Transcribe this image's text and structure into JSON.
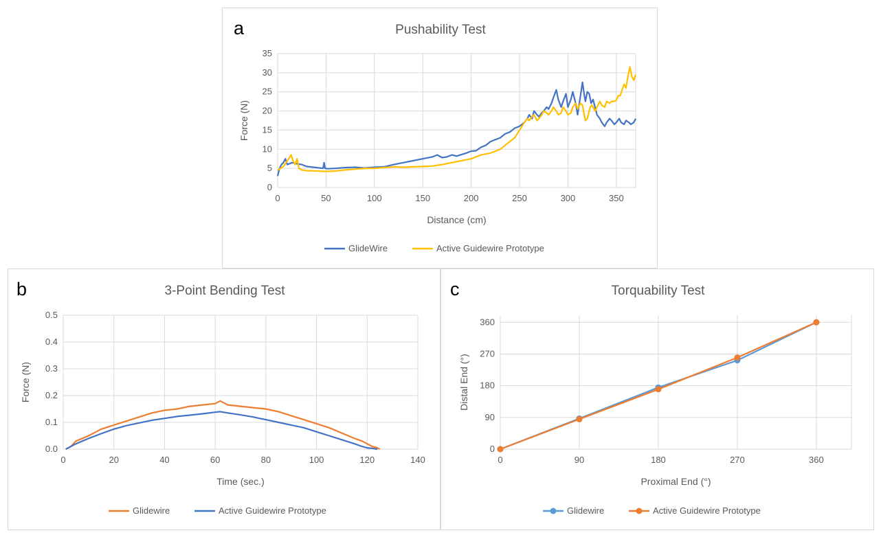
{
  "colors": {
    "blue": "#4472c4",
    "yellow": "#ffc000",
    "orange": "#ed7d31",
    "lightblue": "#5b9bd5",
    "grid": "#d9d9d9",
    "text": "#595959"
  },
  "chart_data": [
    {
      "id": "a",
      "letter": "a",
      "type": "line",
      "title": "Pushability Test",
      "xlabel": "Distance (cm)",
      "ylabel": "Force (N)",
      "xlim": [
        0,
        370
      ],
      "ylim": [
        0,
        35
      ],
      "xticks": [
        0,
        50,
        100,
        150,
        200,
        250,
        300,
        350
      ],
      "yticks": [
        0,
        5,
        10,
        15,
        20,
        25,
        30,
        35
      ],
      "vgrid": true,
      "legend_position": "bottom",
      "series": [
        {
          "name": "GlideWire",
          "color": "#4472c4",
          "x": [
            0,
            2,
            4,
            6,
            8,
            10,
            15,
            20,
            25,
            30,
            40,
            47,
            48,
            49,
            52,
            60,
            70,
            80,
            90,
            100,
            110,
            120,
            130,
            140,
            150,
            160,
            165,
            170,
            175,
            180,
            185,
            190,
            195,
            200,
            205,
            210,
            215,
            220,
            225,
            230,
            235,
            240,
            245,
            250,
            255,
            258,
            260,
            263,
            265,
            268,
            270,
            273,
            275,
            278,
            280,
            283,
            285,
            288,
            290,
            293,
            295,
            298,
            300,
            303,
            305,
            308,
            310,
            313,
            315,
            317,
            318,
            320,
            322,
            324,
            326,
            328,
            330,
            333,
            335,
            338,
            340,
            343,
            345,
            348,
            350,
            353,
            355,
            358,
            360,
            363,
            365,
            368,
            370
          ],
          "y": [
            3,
            5,
            6,
            6.5,
            7.5,
            6,
            6.5,
            6.2,
            6,
            5.5,
            5.2,
            5,
            6.5,
            5,
            4.9,
            5,
            5.2,
            5.3,
            5.1,
            5.3,
            5.4,
            6,
            6.5,
            7,
            7.5,
            8,
            8.5,
            7.8,
            8,
            8.5,
            8.2,
            8.6,
            9,
            9.5,
            9.6,
            10.5,
            11,
            12,
            12.5,
            13,
            14,
            14.5,
            15.5,
            16,
            17,
            18,
            19,
            18,
            20,
            19,
            18.5,
            19.5,
            20,
            21,
            20.5,
            22,
            23.5,
            25.5,
            23,
            21,
            22.5,
            24.5,
            21,
            23,
            25,
            22,
            19,
            24,
            27.5,
            24,
            22.5,
            25,
            24.5,
            22,
            23,
            21,
            19,
            18,
            17,
            16,
            17,
            18,
            17.5,
            16.5,
            17,
            18,
            17,
            16.5,
            17.5,
            17,
            16.5,
            17,
            18
          ]
        },
        {
          "name": "Active Guidewire Prototype",
          "color": "#ffc000",
          "x": [
            0,
            3,
            6,
            10,
            14,
            16,
            18,
            20,
            22,
            25,
            30,
            40,
            50,
            60,
            70,
            80,
            90,
            100,
            110,
            120,
            130,
            140,
            150,
            160,
            170,
            180,
            190,
            200,
            210,
            220,
            225,
            230,
            235,
            240,
            245,
            250,
            255,
            258,
            260,
            263,
            265,
            268,
            270,
            273,
            275,
            278,
            280,
            283,
            285,
            288,
            290,
            293,
            295,
            298,
            300,
            303,
            305,
            308,
            310,
            313,
            315,
            318,
            320,
            323,
            325,
            328,
            330,
            333,
            335,
            338,
            340,
            343,
            345,
            348,
            350,
            352,
            354,
            356,
            358,
            360,
            361,
            362,
            364,
            366,
            368,
            370
          ],
          "y": [
            4.5,
            5,
            5.5,
            7,
            8.5,
            7,
            6,
            7.5,
            5,
            4.6,
            4.4,
            4.3,
            4.2,
            4.3,
            4.6,
            4.8,
            5,
            5,
            5.2,
            5.4,
            5.3,
            5.4,
            5.5,
            5.6,
            6,
            6.5,
            7,
            7.5,
            8.5,
            9,
            9.5,
            10,
            11,
            12,
            13,
            15,
            17,
            18,
            17.5,
            18.5,
            19,
            17.5,
            18,
            19,
            20,
            19.5,
            19,
            20,
            21,
            20,
            19,
            19.5,
            21,
            20,
            19,
            19.5,
            21,
            22,
            20.5,
            22,
            21.5,
            17.5,
            18,
            21,
            21.5,
            20,
            21,
            22.5,
            21.5,
            21,
            22.5,
            22,
            22.5,
            22.5,
            22.8,
            24,
            24,
            25.5,
            27,
            26,
            27.5,
            29,
            31.5,
            29,
            28,
            29.5
          ]
        }
      ]
    },
    {
      "id": "b",
      "letter": "b",
      "type": "line",
      "title": "3-Point Bending Test",
      "xlabel": "Time (sec.)",
      "ylabel": "Force (N)",
      "xlim": [
        0,
        140
      ],
      "ylim": [
        0,
        0.5
      ],
      "xticks": [
        0,
        20,
        40,
        60,
        80,
        100,
        120,
        140
      ],
      "yticks": [
        0,
        0.1,
        0.2,
        0.3,
        0.4,
        0.5
      ],
      "vgrid": true,
      "legend_position": "bottom",
      "series": [
        {
          "name": "Glidewire",
          "color": "#ed7d31",
          "x": [
            1,
            3,
            5,
            10,
            15,
            20,
            25,
            30,
            35,
            40,
            45,
            50,
            55,
            60,
            62,
            63,
            65,
            70,
            75,
            80,
            85,
            90,
            95,
            100,
            105,
            110,
            115,
            118,
            120,
            122,
            124,
            125
          ],
          "y": [
            0,
            0.01,
            0.03,
            0.05,
            0.075,
            0.09,
            0.105,
            0.12,
            0.135,
            0.145,
            0.15,
            0.16,
            0.165,
            0.17,
            0.18,
            0.175,
            0.165,
            0.16,
            0.155,
            0.15,
            0.14,
            0.125,
            0.11,
            0.095,
            0.08,
            0.06,
            0.04,
            0.03,
            0.02,
            0.01,
            0.005,
            0
          ]
        },
        {
          "name": "Active Guidewire Prototype",
          "color": "#4472c4",
          "x": [
            1,
            3,
            5,
            10,
            15,
            20,
            25,
            30,
            35,
            40,
            45,
            50,
            55,
            60,
            62,
            65,
            70,
            75,
            80,
            85,
            90,
            95,
            100,
            105,
            110,
            115,
            118,
            120,
            122,
            124
          ],
          "y": [
            0,
            0.01,
            0.02,
            0.04,
            0.058,
            0.075,
            0.088,
            0.098,
            0.108,
            0.115,
            0.122,
            0.127,
            0.132,
            0.138,
            0.14,
            0.135,
            0.128,
            0.12,
            0.11,
            0.1,
            0.09,
            0.08,
            0.065,
            0.05,
            0.035,
            0.02,
            0.01,
            0.005,
            0.003,
            0
          ]
        }
      ]
    },
    {
      "id": "c",
      "letter": "c",
      "type": "line",
      "title": "Torquability Test",
      "xlabel": "Proximal End (°)",
      "ylabel": "Distal End (°)",
      "xlim": [
        0,
        400
      ],
      "ylim": [
        0,
        380
      ],
      "xticks": [
        0,
        90,
        180,
        270,
        360
      ],
      "yticks": [
        0,
        90,
        180,
        270,
        360
      ],
      "vgrid": true,
      "markers": true,
      "legend_position": "bottom",
      "series": [
        {
          "name": "Glidewire",
          "color": "#5b9bd5",
          "x": [
            0,
            90,
            180,
            270,
            360
          ],
          "y": [
            0,
            87,
            175,
            252,
            360
          ]
        },
        {
          "name": "Active Guidewire Prototype",
          "color": "#ed7d31",
          "x": [
            0,
            90,
            180,
            270,
            360
          ],
          "y": [
            0,
            85,
            170,
            260,
            360
          ]
        }
      ]
    }
  ]
}
